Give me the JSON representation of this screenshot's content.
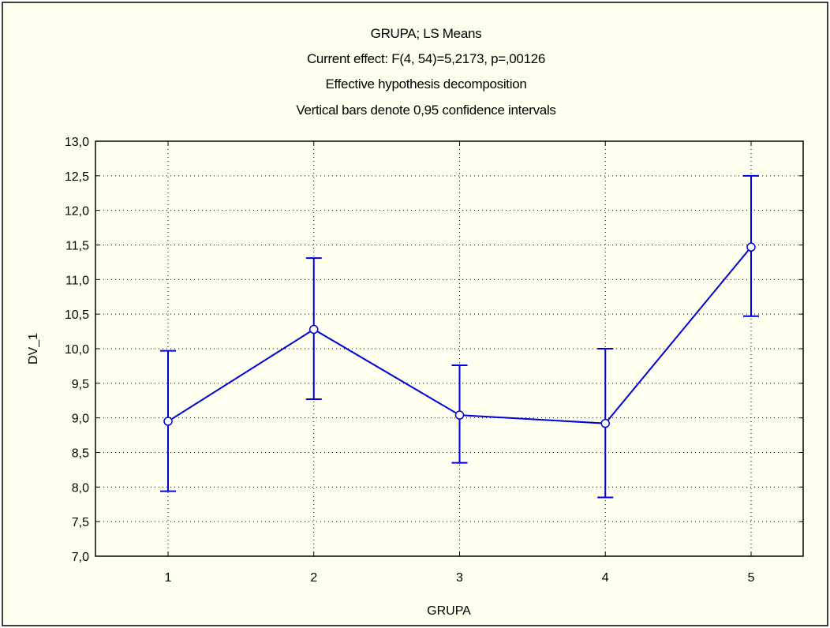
{
  "chart_data": {
    "type": "line",
    "title": "GRUPA; LS Means",
    "subtitle_lines": [
      "Current effect: F(4, 54)=5,2173, p=,00126",
      "Effective hypothesis decomposition",
      "Vertical bars denote 0,95 confidence intervals"
    ],
    "xlabel": "GRUPA",
    "ylabel": "DV_1",
    "categories": [
      "1",
      "2",
      "3",
      "4",
      "5"
    ],
    "series": [
      {
        "values": [
          8.95,
          10.28,
          9.04,
          8.92,
          11.47
        ],
        "ci_lower": [
          7.94,
          9.27,
          8.35,
          7.85,
          10.47
        ],
        "ci_upper": [
          9.97,
          11.31,
          9.76,
          10.0,
          12.5
        ]
      }
    ],
    "ylim": [
      7.0,
      13.0
    ],
    "y_ticks": [
      "7,0",
      "7,5",
      "8,0",
      "8,5",
      "9,0",
      "9,5",
      "10,0",
      "10,5",
      "11,0",
      "11,5",
      "12,0",
      "12,5",
      "13,0"
    ],
    "grid": true,
    "colors": {
      "page_background": "#ffffff",
      "chart_background": "#fffff0",
      "frame": "#000000",
      "series": "#0000d8",
      "marker_fill": "#ffffff",
      "grid": "#000000"
    }
  }
}
